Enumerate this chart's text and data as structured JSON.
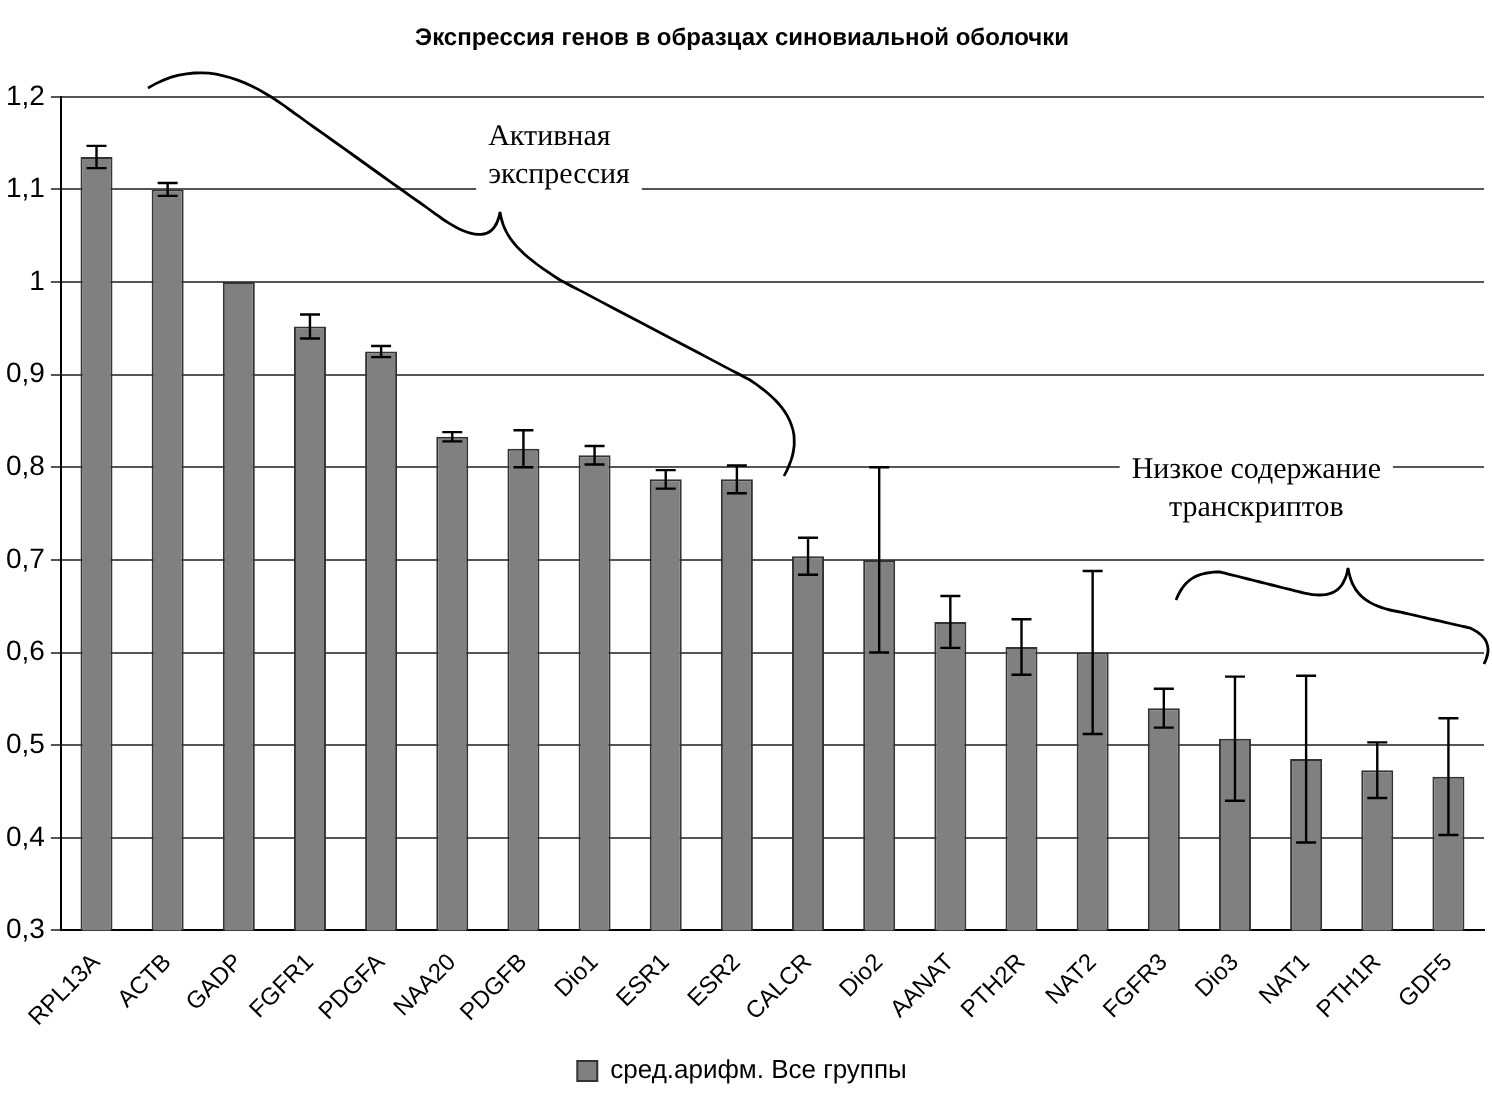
{
  "chart_data": {
    "type": "bar",
    "title": "Экспрессия генов в образцах синовиальной оболочки",
    "categories": [
      "RPL13A",
      "ACTB",
      "GADP",
      "FGFR1",
      "PDGFA",
      "NAA20",
      "PDGFB",
      "Dio1",
      "ESR1",
      "ESR2",
      "CALCR",
      "Dio2",
      "AANAT",
      "PTH2R",
      "NAT2",
      "FGFR3",
      "Dio3",
      "NAT1",
      "PTH1R",
      "GDF5"
    ],
    "series": [
      {
        "name": "сред.арифм. Все группы",
        "color": "#808080",
        "values": [
          1.135,
          1.1,
          1.0,
          0.952,
          0.925,
          0.833,
          0.82,
          0.813,
          0.787,
          0.787,
          0.704,
          0.7,
          0.633,
          0.606,
          0.6,
          0.54,
          0.507,
          0.485,
          0.473,
          0.466
        ],
        "errors": [
          0.012,
          0.007,
          null,
          0.013,
          0.006,
          0.005,
          0.02,
          0.01,
          0.01,
          0.015,
          0.02,
          0.1,
          0.028,
          0.03,
          0.088,
          0.021,
          0.067,
          0.09,
          0.03,
          0.063
        ]
      }
    ],
    "ylim": [
      0.3,
      1.2
    ],
    "yticks": [
      {
        "value": 0.3,
        "label": "0,3"
      },
      {
        "value": 0.4,
        "label": "0,4"
      },
      {
        "value": 0.5,
        "label": "0,5"
      },
      {
        "value": 0.6,
        "label": "0,6"
      },
      {
        "value": 0.7,
        "label": "0,7"
      },
      {
        "value": 0.8,
        "label": "0,8"
      },
      {
        "value": 0.9,
        "label": "0,9"
      },
      1,
      {
        "value": 1.1,
        "label": "1,1"
      },
      {
        "value": 1.2,
        "label": "1,2"
      }
    ],
    "grid": "y",
    "legend": "bottom",
    "annotations": [
      "Активная\nэкспрессия",
      "Низкое содержание\nтранскриптов"
    ]
  }
}
